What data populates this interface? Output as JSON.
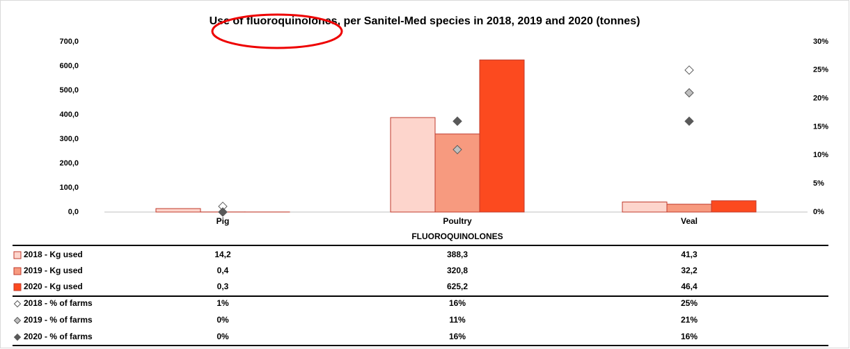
{
  "chart_data": {
    "type": "bar",
    "title": "Use of fluoroquinolones, per Sanitel-Med species in 2018, 2019 and 2020 (tonnes)",
    "x_label": "FLUOROQUINOLONES",
    "categories": [
      "Pig",
      "Poultry",
      "Veal"
    ],
    "series": [
      {
        "name": "2018 - Kg used",
        "color": "#fdd5cc",
        "values": [
          14.2,
          388.3,
          41.3
        ],
        "value_labels": [
          "14,2",
          "388,3",
          "41,3"
        ]
      },
      {
        "name": "2019 - Kg used",
        "color": "#f79a7f",
        "values": [
          0.4,
          320.8,
          32.2
        ],
        "value_labels": [
          "0,4",
          "320,8",
          "32,2"
        ]
      },
      {
        "name": "2020 - Kg used",
        "color": "#fc4a1f",
        "values": [
          0.3,
          625.2,
          46.4
        ],
        "value_labels": [
          "0,3",
          "625,2",
          "46,4"
        ]
      },
      {
        "name": "2018 - % of farms",
        "color": "#ffffff",
        "axis": "y2",
        "values": [
          1,
          16,
          25
        ],
        "value_labels": [
          "1%",
          "16%",
          "25%"
        ]
      },
      {
        "name": "2019 - % of farms",
        "color": "#bfbfbf",
        "axis": "y2",
        "values": [
          0,
          11,
          21
        ],
        "value_labels": [
          "0%",
          "11%",
          "21%"
        ]
      },
      {
        "name": "2020 - % of farms",
        "color": "#595959",
        "axis": "y2",
        "values": [
          0,
          16,
          16
        ],
        "value_labels": [
          "0%",
          "16%",
          "16%"
        ]
      }
    ],
    "ylim": [
      0,
      700
    ],
    "yticks": [
      {
        "value": 0,
        "label": "0,0"
      },
      {
        "value": 100,
        "label": "100,0"
      },
      {
        "value": 200,
        "label": "200,0"
      },
      {
        "value": 300,
        "label": "300,0"
      },
      {
        "value": 400,
        "label": "400,0"
      },
      {
        "value": 500,
        "label": "500,0"
      },
      {
        "value": 600,
        "label": "600,0"
      },
      {
        "value": 700,
        "label": "700,0"
      }
    ],
    "y2lim": [
      0,
      30
    ],
    "y2ticks": [
      {
        "value": 0,
        "label": "0%"
      },
      {
        "value": 5,
        "label": "5%"
      },
      {
        "value": 10,
        "label": "10%"
      },
      {
        "value": 15,
        "label": "15%"
      },
      {
        "value": 20,
        "label": "20%"
      },
      {
        "value": 25,
        "label": "25%"
      },
      {
        "value": 30,
        "label": "30%"
      }
    ]
  }
}
